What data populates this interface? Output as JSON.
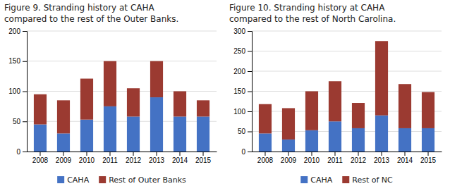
{
  "chart_data": [
    {
      "type": "bar",
      "stacked": true,
      "title": "Figure 9. Stranding history at CAHA",
      "subtitle": "compared to the rest of the Outer Banks.",
      "categories": [
        "2008",
        "2009",
        "2010",
        "2011",
        "2012",
        "2013",
        "2014",
        "2015"
      ],
      "series": [
        {
          "name": "CAHA",
          "color": "#4472c4",
          "values": [
            45,
            30,
            53,
            75,
            58,
            90,
            58,
            58
          ]
        },
        {
          "name": "Rest of Outer Banks",
          "color": "#9b3a31",
          "values": [
            50,
            55,
            68,
            75,
            47,
            60,
            42,
            27
          ]
        }
      ],
      "ylim": [
        0,
        200
      ],
      "yticks": [
        0,
        50,
        100,
        150,
        200
      ],
      "grid": true,
      "legend": "bottom"
    },
    {
      "type": "bar",
      "stacked": true,
      "title": "Figure 10. Stranding history at CAHA",
      "subtitle": "compared to the rest of North Carolina.",
      "categories": [
        "2008",
        "2009",
        "2010",
        "2011",
        "2012",
        "2013",
        "2014",
        "2015"
      ],
      "series": [
        {
          "name": "CAHA",
          "color": "#4472c4",
          "values": [
            45,
            30,
            53,
            75,
            58,
            90,
            58,
            58
          ]
        },
        {
          "name": "Rest of NC",
          "color": "#9b3a31",
          "values": [
            73,
            78,
            97,
            100,
            63,
            185,
            110,
            90
          ]
        }
      ],
      "ylim": [
        0,
        300
      ],
      "yticks": [
        0,
        50,
        100,
        150,
        200,
        250,
        300
      ],
      "grid": true,
      "legend": "bottom"
    }
  ]
}
